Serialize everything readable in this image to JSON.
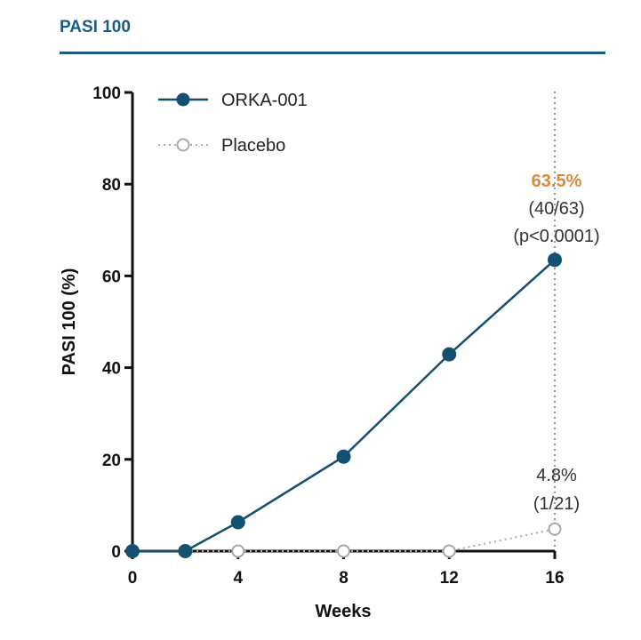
{
  "header": {
    "title": "PASI 100"
  },
  "colors": {
    "accent": "#1a5d84",
    "series_active": "#14506f",
    "series_placebo": "#a8a8a8",
    "highlight": "#d88a3a"
  },
  "chart_data": {
    "type": "line",
    "xlabel": "Weeks",
    "ylabel": "PASI 100 (%)",
    "xlim": [
      0,
      16
    ],
    "ylim": [
      0,
      100
    ],
    "x_ticks": [
      0,
      4,
      8,
      12,
      16
    ],
    "y_ticks": [
      0,
      20,
      40,
      60,
      80,
      100
    ],
    "grid": false,
    "legend_position": "top-left",
    "series": [
      {
        "name": "ORKA-001",
        "style": "solid line, filled circle markers",
        "x": [
          0,
          2,
          4,
          8,
          12,
          16
        ],
        "y": [
          0,
          0,
          6.3,
          20.6,
          42.9,
          63.5
        ]
      },
      {
        "name": "Placebo",
        "style": "dotted line, open circle markers",
        "x": [
          0,
          4,
          8,
          12,
          16
        ],
        "y": [
          0,
          0,
          0,
          0,
          4.8
        ]
      }
    ],
    "reference_line": {
      "x": 16,
      "style": "dotted vertical"
    },
    "annotations": {
      "active": {
        "value": "63.5%",
        "count": "(40/63)",
        "pvalue": "(p<0.0001)"
      },
      "placebo": {
        "value": "4.8%",
        "count": "(1/21)"
      }
    }
  }
}
